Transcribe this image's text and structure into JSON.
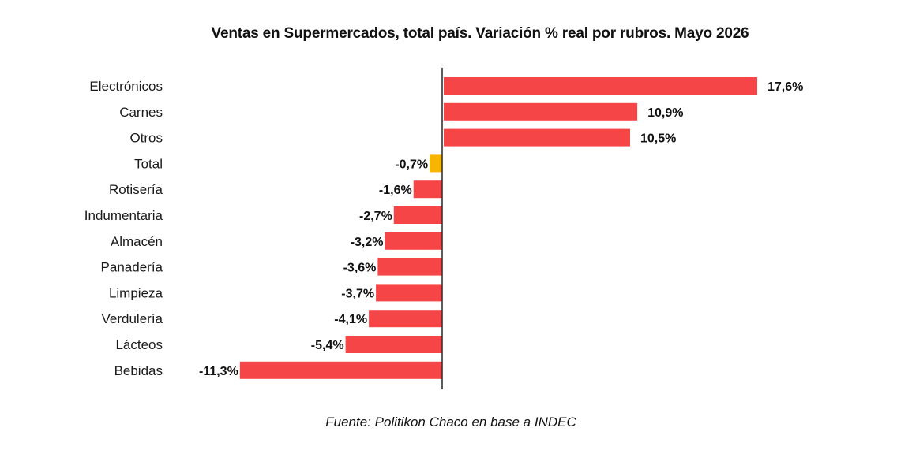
{
  "chart_data": {
    "type": "bar",
    "orientation": "horizontal",
    "title": "Ventas en Supermercados, total país. Variación % real por rubros. Mayo 2026",
    "categories": [
      "Electrónicos",
      "Carnes",
      "Otros",
      "Total",
      "Rotisería",
      "Indumentaria",
      "Almacén",
      "Panadería",
      "Limpieza",
      "Verdulería",
      "Lácteos",
      "Bebidas"
    ],
    "values": [
      17.6,
      10.9,
      10.5,
      -0.7,
      -1.6,
      -2.7,
      -3.2,
      -3.6,
      -3.7,
      -4.1,
      -5.4,
      -11.3
    ],
    "value_labels": [
      "17,6%",
      "10,9%",
      "10,5%",
      "-0,7%",
      "-1,6%",
      "-2,7%",
      "-3,2%",
      "-3,6%",
      "-3,7%",
      "-4,1%",
      "-5,4%",
      "-11,3%"
    ],
    "highlight_category": "Total",
    "colors": {
      "bar": "#f64547",
      "highlight": "#f7b500",
      "axis": "#333333"
    },
    "xlim": [
      -11.3,
      17.6
    ],
    "grid": false,
    "legend": "none",
    "source": "Fuente: Politikon Chaco en base a INDEC"
  }
}
